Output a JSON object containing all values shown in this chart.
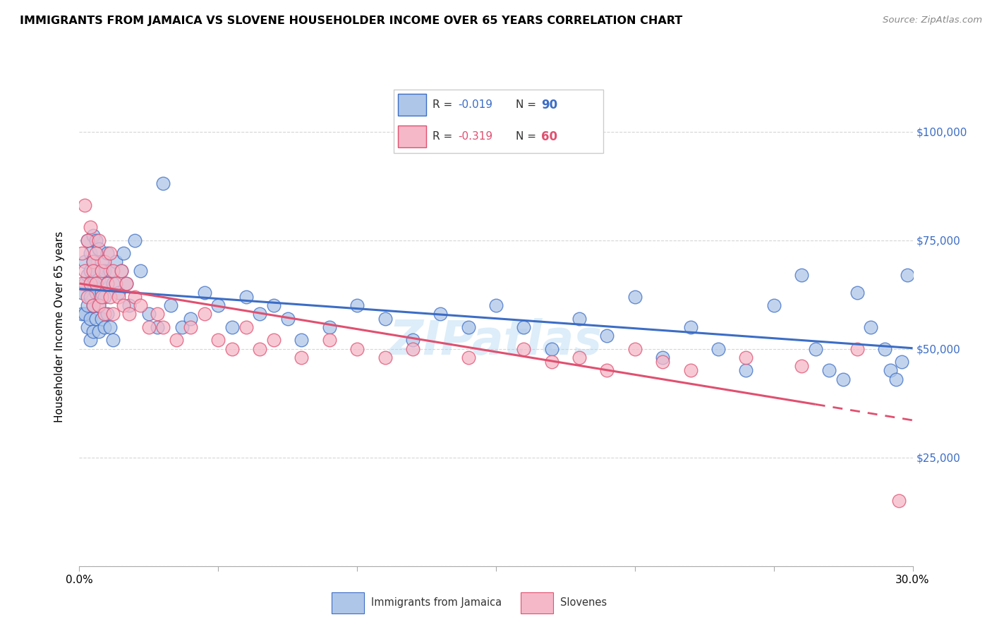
{
  "title": "IMMIGRANTS FROM JAMAICA VS SLOVENE HOUSEHOLDER INCOME OVER 65 YEARS CORRELATION CHART",
  "source": "Source: ZipAtlas.com",
  "ylabel": "Householder Income Over 65 years",
  "y_ticks": [
    0,
    25000,
    50000,
    75000,
    100000
  ],
  "y_tick_labels": [
    "",
    "$25,000",
    "$50,000",
    "$75,000",
    "$100,000"
  ],
  "x_range": [
    0.0,
    0.3
  ],
  "y_range": [
    0,
    110000
  ],
  "color_jamaica": "#aec6e8",
  "color_slovene": "#f5b8c8",
  "color_jamaica_line": "#3c6dc5",
  "color_slovene_line": "#e05070",
  "watermark_text": "ZIPatlas",
  "jamaica_x": [
    0.001,
    0.001,
    0.002,
    0.002,
    0.002,
    0.003,
    0.003,
    0.003,
    0.003,
    0.004,
    0.004,
    0.004,
    0.004,
    0.004,
    0.005,
    0.005,
    0.005,
    0.005,
    0.005,
    0.006,
    0.006,
    0.006,
    0.006,
    0.007,
    0.007,
    0.007,
    0.007,
    0.008,
    0.008,
    0.008,
    0.009,
    0.009,
    0.009,
    0.01,
    0.01,
    0.01,
    0.011,
    0.011,
    0.012,
    0.012,
    0.013,
    0.014,
    0.015,
    0.016,
    0.017,
    0.018,
    0.02,
    0.022,
    0.025,
    0.028,
    0.03,
    0.033,
    0.037,
    0.04,
    0.045,
    0.05,
    0.055,
    0.06,
    0.065,
    0.07,
    0.075,
    0.08,
    0.09,
    0.1,
    0.11,
    0.12,
    0.13,
    0.14,
    0.15,
    0.16,
    0.17,
    0.18,
    0.19,
    0.2,
    0.21,
    0.22,
    0.23,
    0.24,
    0.25,
    0.26,
    0.265,
    0.27,
    0.275,
    0.28,
    0.285,
    0.29,
    0.292,
    0.294,
    0.296,
    0.298
  ],
  "jamaica_y": [
    63000,
    58000,
    70000,
    65000,
    58000,
    75000,
    67000,
    60000,
    55000,
    72000,
    68000,
    62000,
    57000,
    52000,
    76000,
    70000,
    65000,
    60000,
    54000,
    75000,
    68000,
    63000,
    57000,
    73000,
    66000,
    60000,
    54000,
    70000,
    63000,
    57000,
    68000,
    62000,
    55000,
    72000,
    65000,
    58000,
    68000,
    55000,
    65000,
    52000,
    70000,
    63000,
    68000,
    72000,
    65000,
    60000,
    75000,
    68000,
    58000,
    55000,
    88000,
    60000,
    55000,
    57000,
    63000,
    60000,
    55000,
    62000,
    58000,
    60000,
    57000,
    52000,
    55000,
    60000,
    57000,
    52000,
    58000,
    55000,
    60000,
    55000,
    50000,
    57000,
    53000,
    62000,
    48000,
    55000,
    50000,
    45000,
    60000,
    67000,
    50000,
    45000,
    43000,
    63000,
    55000,
    50000,
    45000,
    43000,
    47000,
    67000
  ],
  "slovene_x": [
    0.001,
    0.001,
    0.002,
    0.002,
    0.003,
    0.003,
    0.004,
    0.004,
    0.005,
    0.005,
    0.005,
    0.006,
    0.006,
    0.007,
    0.007,
    0.008,
    0.008,
    0.009,
    0.009,
    0.01,
    0.011,
    0.011,
    0.012,
    0.012,
    0.013,
    0.014,
    0.015,
    0.016,
    0.017,
    0.018,
    0.02,
    0.022,
    0.025,
    0.028,
    0.03,
    0.035,
    0.04,
    0.045,
    0.05,
    0.055,
    0.06,
    0.065,
    0.07,
    0.08,
    0.09,
    0.1,
    0.11,
    0.12,
    0.14,
    0.16,
    0.17,
    0.18,
    0.19,
    0.2,
    0.21,
    0.22,
    0.24,
    0.26,
    0.28,
    0.295
  ],
  "slovene_y": [
    72000,
    65000,
    83000,
    68000,
    75000,
    62000,
    78000,
    65000,
    70000,
    68000,
    60000,
    72000,
    65000,
    75000,
    60000,
    68000,
    62000,
    70000,
    58000,
    65000,
    72000,
    62000,
    68000,
    58000,
    65000,
    62000,
    68000,
    60000,
    65000,
    58000,
    62000,
    60000,
    55000,
    58000,
    55000,
    52000,
    55000,
    58000,
    52000,
    50000,
    55000,
    50000,
    52000,
    48000,
    52000,
    50000,
    48000,
    50000,
    48000,
    50000,
    47000,
    48000,
    45000,
    50000,
    47000,
    45000,
    48000,
    46000,
    50000,
    15000
  ]
}
